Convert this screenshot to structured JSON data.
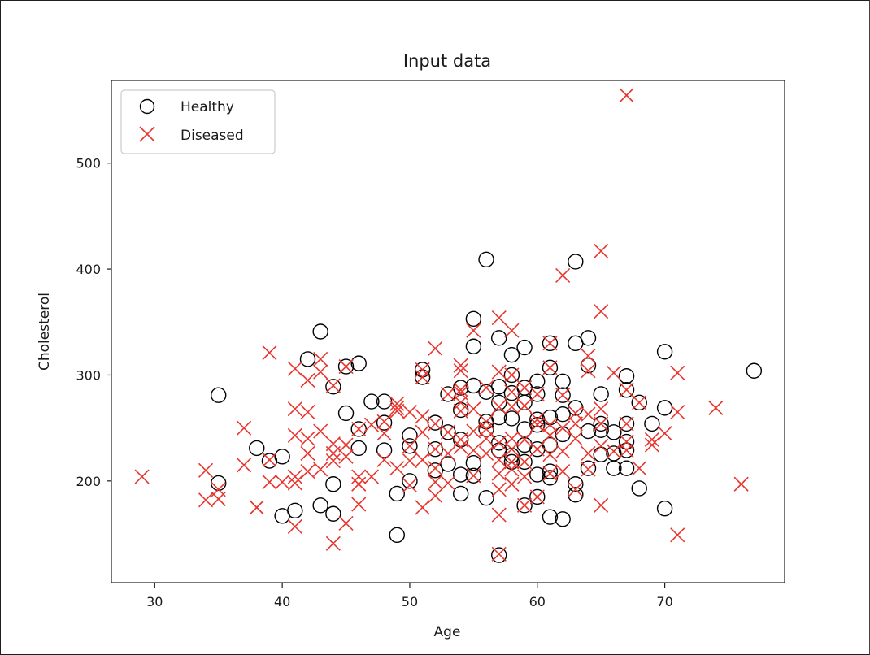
{
  "chart_data": {
    "type": "scatter",
    "title": "Input data",
    "xlabel": "Age",
    "ylabel": "Cholesterol",
    "xlim": [
      26.6,
      79.4
    ],
    "ylim": [
      104,
      578
    ],
    "xticks": [
      30,
      40,
      50,
      60,
      70
    ],
    "yticks": [
      200,
      300,
      400,
      500
    ],
    "grid": false,
    "legend_position": "top-left",
    "series": [
      {
        "name": "Healthy",
        "marker": "circle",
        "color": "#000000",
        "points": [
          [
            35,
            281
          ],
          [
            35,
            198
          ],
          [
            38,
            231
          ],
          [
            39,
            219
          ],
          [
            40,
            223
          ],
          [
            40,
            167
          ],
          [
            41,
            172
          ],
          [
            42,
            315
          ],
          [
            43,
            341
          ],
          [
            43,
            177
          ],
          [
            44,
            289
          ],
          [
            44,
            197
          ],
          [
            44,
            169
          ],
          [
            45,
            308
          ],
          [
            45,
            264
          ],
          [
            46,
            311
          ],
          [
            46,
            249
          ],
          [
            46,
            231
          ],
          [
            47,
            275
          ],
          [
            48,
            275
          ],
          [
            48,
            255
          ],
          [
            48,
            229
          ],
          [
            49,
            188
          ],
          [
            49,
            149
          ],
          [
            50,
            243
          ],
          [
            50,
            233
          ],
          [
            50,
            200
          ],
          [
            51,
            305
          ],
          [
            51,
            298
          ],
          [
            52,
            255
          ],
          [
            52,
            230
          ],
          [
            52,
            210
          ],
          [
            53,
            282
          ],
          [
            53,
            246
          ],
          [
            53,
            216
          ],
          [
            54,
            288
          ],
          [
            54,
            267
          ],
          [
            54,
            239
          ],
          [
            54,
            206
          ],
          [
            54,
            188
          ],
          [
            55,
            353
          ],
          [
            55,
            327
          ],
          [
            55,
            290
          ],
          [
            55,
            217
          ],
          [
            55,
            205
          ],
          [
            56,
            409
          ],
          [
            56,
            284
          ],
          [
            56,
            256
          ],
          [
            56,
            249
          ],
          [
            56,
            184
          ],
          [
            57,
            335
          ],
          [
            57,
            289
          ],
          [
            57,
            274
          ],
          [
            57,
            260
          ],
          [
            57,
            236
          ],
          [
            57,
            229
          ],
          [
            57,
            130
          ],
          [
            58,
            319
          ],
          [
            58,
            300
          ],
          [
            58,
            283
          ],
          [
            58,
            259
          ],
          [
            58,
            224
          ],
          [
            58,
            218
          ],
          [
            59,
            326
          ],
          [
            59,
            288
          ],
          [
            59,
            274
          ],
          [
            59,
            249
          ],
          [
            59,
            234
          ],
          [
            59,
            218
          ],
          [
            59,
            177
          ],
          [
            60,
            294
          ],
          [
            60,
            282
          ],
          [
            60,
            258
          ],
          [
            60,
            253
          ],
          [
            60,
            230
          ],
          [
            60,
            206
          ],
          [
            60,
            185
          ],
          [
            61,
            330
          ],
          [
            61,
            307
          ],
          [
            61,
            260
          ],
          [
            61,
            234
          ],
          [
            61,
            209
          ],
          [
            61,
            203
          ],
          [
            61,
            166
          ],
          [
            62,
            294
          ],
          [
            62,
            281
          ],
          [
            62,
            263
          ],
          [
            62,
            244
          ],
          [
            62,
            164
          ],
          [
            63,
            407
          ],
          [
            63,
            330
          ],
          [
            63,
            269
          ],
          [
            63,
            197
          ],
          [
            63,
            187
          ],
          [
            64,
            335
          ],
          [
            64,
            309
          ],
          [
            64,
            247
          ],
          [
            64,
            212
          ],
          [
            65,
            282
          ],
          [
            65,
            254
          ],
          [
            65,
            248
          ],
          [
            65,
            225
          ],
          [
            66,
            246
          ],
          [
            66,
            226
          ],
          [
            66,
            212
          ],
          [
            67,
            299
          ],
          [
            67,
            286
          ],
          [
            67,
            254
          ],
          [
            67,
            237
          ],
          [
            67,
            229
          ],
          [
            67,
            212
          ],
          [
            68,
            274
          ],
          [
            68,
            193
          ],
          [
            69,
            254
          ],
          [
            70,
            322
          ],
          [
            70,
            269
          ],
          [
            70,
            174
          ],
          [
            77,
            304
          ]
        ]
      },
      {
        "name": "Diseased",
        "marker": "x",
        "color": "#e8352e",
        "points": [
          [
            29,
            204
          ],
          [
            34,
            210
          ],
          [
            34,
            182
          ],
          [
            35,
            192
          ],
          [
            35,
            183
          ],
          [
            37,
            250
          ],
          [
            37,
            215
          ],
          [
            38,
            175
          ],
          [
            38,
            175
          ],
          [
            39,
            321
          ],
          [
            39,
            220
          ],
          [
            39,
            199
          ],
          [
            40,
            199
          ],
          [
            41,
            306
          ],
          [
            41,
            268
          ],
          [
            41,
            243
          ],
          [
            41,
            204
          ],
          [
            41,
            198
          ],
          [
            41,
            157
          ],
          [
            42,
            295
          ],
          [
            42,
            265
          ],
          [
            42,
            240
          ],
          [
            42,
            226
          ],
          [
            42,
            209
          ],
          [
            43,
            315
          ],
          [
            43,
            303
          ],
          [
            43,
            247
          ],
          [
            43,
            211
          ],
          [
            44,
            290
          ],
          [
            44,
            235
          ],
          [
            44,
            226
          ],
          [
            44,
            219
          ],
          [
            44,
            141
          ],
          [
            45,
            308
          ],
          [
            45,
            234
          ],
          [
            45,
            223
          ],
          [
            45,
            160
          ],
          [
            46,
            249
          ],
          [
            46,
            204
          ],
          [
            46,
            197
          ],
          [
            46,
            178
          ],
          [
            47,
            253
          ],
          [
            47,
            204
          ],
          [
            48,
            256
          ],
          [
            48,
            245
          ],
          [
            48,
            220
          ],
          [
            49,
            273
          ],
          [
            49,
            266
          ],
          [
            49,
            269
          ],
          [
            49,
            212
          ],
          [
            50,
            265
          ],
          [
            50,
            233
          ],
          [
            50,
            219
          ],
          [
            50,
            196
          ],
          [
            51,
            305
          ],
          [
            51,
            298
          ],
          [
            51,
            261
          ],
          [
            51,
            246
          ],
          [
            51,
            220
          ],
          [
            51,
            175
          ],
          [
            52,
            325
          ],
          [
            52,
            254
          ],
          [
            52,
            230
          ],
          [
            52,
            212
          ],
          [
            52,
            199
          ],
          [
            52,
            186
          ],
          [
            53,
            282
          ],
          [
            53,
            246
          ],
          [
            53,
            226
          ],
          [
            53,
            198
          ],
          [
            54,
            309
          ],
          [
            54,
            304
          ],
          [
            54,
            286
          ],
          [
            54,
            283
          ],
          [
            54,
            274
          ],
          [
            54,
            266
          ],
          [
            54,
            239
          ],
          [
            54,
            232
          ],
          [
            55,
            342
          ],
          [
            55,
            268
          ],
          [
            55,
            247
          ],
          [
            55,
            229
          ],
          [
            55,
            205
          ],
          [
            56,
            288
          ],
          [
            56,
            256
          ],
          [
            56,
            249
          ],
          [
            56,
            240
          ],
          [
            56,
            226
          ],
          [
            57,
            354
          ],
          [
            57,
            303
          ],
          [
            57,
            270
          ],
          [
            57,
            236
          ],
          [
            57,
            220
          ],
          [
            57,
            207
          ],
          [
            57,
            192
          ],
          [
            57,
            168
          ],
          [
            57,
            131
          ],
          [
            58,
            342
          ],
          [
            58,
            300
          ],
          [
            58,
            284
          ],
          [
            58,
            270
          ],
          [
            58,
            240
          ],
          [
            58,
            230
          ],
          [
            58,
            218
          ],
          [
            58,
            211
          ],
          [
            58,
            197
          ],
          [
            59,
            288
          ],
          [
            59,
            271
          ],
          [
            59,
            239
          ],
          [
            59,
            218
          ],
          [
            59,
            204
          ],
          [
            59,
            177
          ],
          [
            60,
            282
          ],
          [
            60,
            258
          ],
          [
            60,
            230
          ],
          [
            60,
            253
          ],
          [
            60,
            185
          ],
          [
            61,
            330
          ],
          [
            61,
            307
          ],
          [
            61,
            253
          ],
          [
            61,
            243
          ],
          [
            61,
            225
          ],
          [
            61,
            207
          ],
          [
            62,
            394
          ],
          [
            62,
            281
          ],
          [
            62,
            250
          ],
          [
            62,
            228
          ],
          [
            62,
            209
          ],
          [
            63,
            264
          ],
          [
            63,
            254
          ],
          [
            63,
            240
          ],
          [
            63,
            192
          ],
          [
            64,
            318
          ],
          [
            64,
            304
          ],
          [
            64,
            263
          ],
          [
            64,
            226
          ],
          [
            64,
            211
          ],
          [
            65,
            417
          ],
          [
            65,
            360
          ],
          [
            65,
            268
          ],
          [
            65,
            254
          ],
          [
            65,
            233
          ],
          [
            65,
            177
          ],
          [
            66,
            302
          ],
          [
            66,
            228
          ],
          [
            67,
            564
          ],
          [
            67,
            286
          ],
          [
            67,
            254
          ],
          [
            67,
            237
          ],
          [
            67,
            229
          ],
          [
            68,
            274
          ],
          [
            68,
            212
          ],
          [
            69,
            239
          ],
          [
            69,
            234
          ],
          [
            70,
            245
          ],
          [
            71,
            302
          ],
          [
            71,
            265
          ],
          [
            71,
            149
          ],
          [
            74,
            269
          ],
          [
            76,
            197
          ]
        ]
      }
    ]
  }
}
